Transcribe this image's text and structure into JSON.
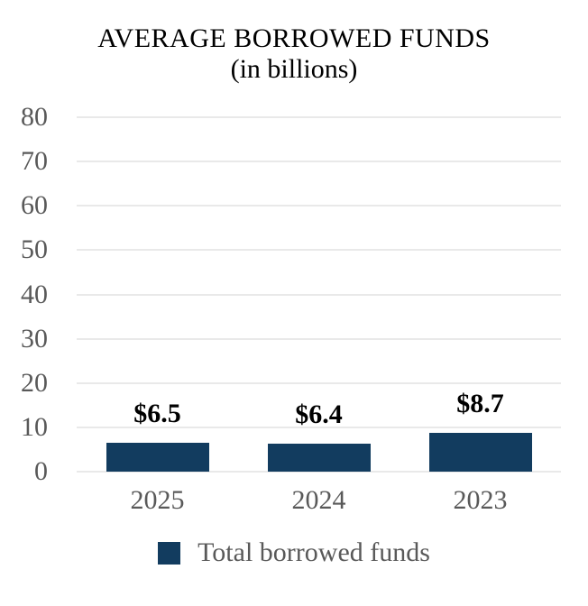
{
  "chart_data": {
    "type": "bar",
    "title": "AVERAGE BORROWED FUNDS",
    "subtitle": "(in billions)",
    "categories": [
      "2025",
      "2024",
      "2023"
    ],
    "series": [
      {
        "name": "Total borrowed funds",
        "values": [
          6.5,
          6.4,
          8.7
        ],
        "color": "#123c5f"
      }
    ],
    "data_labels": [
      "$6.5",
      "$6.4",
      "$8.7"
    ],
    "xlabel": "",
    "ylabel": "",
    "ylim": [
      0,
      80
    ],
    "yticks": [
      0,
      10,
      20,
      30,
      40,
      50,
      60,
      70,
      80
    ],
    "grid": true,
    "legend": {
      "position": "bottom",
      "entries": [
        {
          "label": "Total borrowed funds",
          "color": "#123c5f"
        }
      ]
    }
  },
  "colors": {
    "bar": "#123c5f",
    "gridline": "#e9e9e9",
    "axis_text": "#595959",
    "title_text": "#000000",
    "value_label_text": "#000000",
    "background": "#ffffff"
  }
}
